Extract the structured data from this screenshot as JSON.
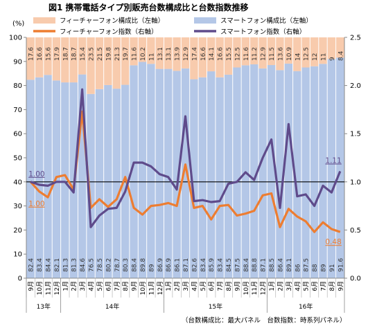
{
  "chart_data": {
    "type": "bar",
    "title": "図1 携帯電話タイプ別販売台数構成比と台数指数推移",
    "left_axis_label": "(%)",
    "left_ylim": [
      0,
      100
    ],
    "left_ticks": [
      0,
      10,
      20,
      30,
      40,
      50,
      60,
      70,
      80,
      90,
      100
    ],
    "right_ylim": [
      0,
      2.5
    ],
    "right_ticks": [
      "0.0",
      "0.5",
      "1.0",
      "1.5",
      "2.0",
      "2.5"
    ],
    "legend": {
      "feature_share": "フィーチャーフォン構成比（左軸）",
      "smart_share": "スマートフォン構成比（左軸）",
      "feature_index": "フィーチャーフォン指数（右軸）",
      "smart_index": "スマートフォン指数（右軸）"
    },
    "categories": [
      "9月",
      "10月",
      "11月",
      "12月",
      "1月",
      "2月",
      "3月",
      "4月",
      "5月",
      "6月",
      "7月",
      "8月",
      "9月",
      "10月",
      "11月",
      "12月",
      "1月",
      "2月",
      "3月",
      "4月",
      "5月",
      "6月",
      "7月",
      "8月",
      "9月",
      "10月",
      "11月",
      "12月",
      "1月",
      "2月",
      "3月",
      "4月",
      "5月",
      "6月",
      "7月",
      "8月",
      "9月"
    ],
    "year_groups": [
      {
        "label": "13年",
        "start": 0,
        "end": 3
      },
      {
        "label": "14年",
        "start": 4,
        "end": 15
      },
      {
        "label": "15年",
        "start": 16,
        "end": 27
      },
      {
        "label": "16年",
        "start": 28,
        "end": 36
      }
    ],
    "smart_share": [
      82.4,
      83.4,
      84.4,
      82.1,
      81.3,
      81.3,
      84.6,
      76.5,
      78.5,
      80.2,
      78.7,
      80.3,
      88.4,
      89.8,
      89.0,
      86.9,
      86.9,
      86.1,
      87.1,
      82.6,
      83.4,
      85.9,
      83.4,
      84.5,
      87.5,
      88.4,
      88.8,
      87.1,
      88.5,
      86.4,
      89.1,
      86.0,
      87.5,
      88.0,
      89.0,
      91.0,
      91.6
    ],
    "feature_share": [
      17.6,
      16.6,
      15.6,
      17.9,
      18.7,
      18.7,
      15.4,
      23.5,
      21.5,
      19.8,
      21.3,
      19.7,
      11.6,
      10.2,
      11.0,
      13.1,
      13.1,
      13.9,
      12.9,
      17.4,
      16.6,
      14.1,
      16.6,
      15.5,
      12.5,
      11.6,
      11.2,
      12.9,
      11.5,
      13.6,
      10.9,
      14.0,
      12.5,
      12.0,
      11.0,
      9.0,
      8.4
    ],
    "smart_index": [
      1.0,
      0.97,
      0.96,
      1.0,
      1.0,
      0.89,
      1.96,
      0.53,
      0.65,
      0.72,
      0.73,
      0.9,
      1.2,
      1.2,
      1.16,
      1.08,
      1.05,
      0.92,
      1.68,
      0.8,
      0.81,
      0.79,
      0.8,
      0.98,
      1.0,
      1.1,
      1.02,
      1.25,
      1.44,
      0.73,
      1.6,
      0.85,
      0.87,
      0.75,
      0.96,
      0.89,
      1.11
    ],
    "feature_index": [
      1.0,
      0.9,
      0.84,
      1.05,
      1.07,
      0.92,
      1.73,
      0.73,
      0.82,
      0.74,
      0.82,
      1.05,
      0.73,
      0.66,
      0.75,
      0.76,
      0.78,
      0.75,
      1.18,
      0.73,
      0.75,
      0.61,
      0.75,
      0.76,
      0.65,
      0.67,
      0.7,
      0.86,
      0.88,
      0.53,
      0.72,
      0.64,
      0.59,
      0.48,
      0.58,
      0.51,
      0.48
    ],
    "annotations": {
      "smart_start": "1.00",
      "feature_start": "1.00",
      "smart_end": "1.11",
      "feature_end": "0.48"
    },
    "reference_line": 1.0,
    "footnote": "（台数構成比：最大パネル　台数指数：時系列パネル）",
    "colors": {
      "smart_bar": "#b4c7e7",
      "feature_bar": "#f8cbad",
      "smart_line": "#5f4b8b",
      "feature_line": "#ed7d31",
      "ref_line": "#000000"
    }
  }
}
